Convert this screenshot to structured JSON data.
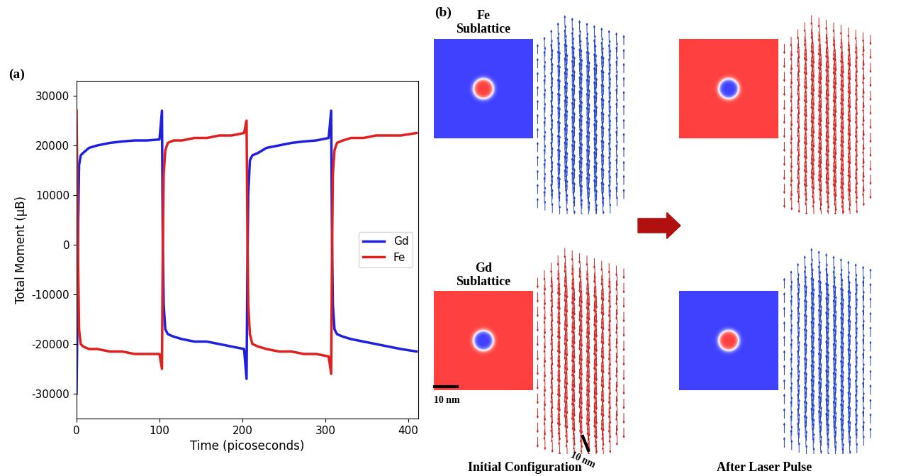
{
  "chart_data": {
    "type": "line",
    "title": "(a)",
    "x_label": "Time (picoseconds)",
    "y_label": "Total Moment (μB)",
    "x": [
      0,
      1,
      2,
      3,
      5,
      8,
      15,
      25,
      40,
      55,
      70,
      85,
      100,
      103,
      104,
      105,
      107,
      110,
      117,
      127,
      142,
      157,
      172,
      187,
      202,
      205,
      206,
      207,
      209,
      212,
      219,
      229,
      244,
      259,
      274,
      289,
      304,
      307,
      308,
      309,
      311,
      314,
      321,
      331,
      346,
      361,
      376,
      391,
      410
    ],
    "series": [
      {
        "name": "Gd",
        "color": "#1f1fe0",
        "values": [
          -30000,
          -15000,
          5000,
          16000,
          18000,
          18500,
          19500,
          20000,
          20500,
          20800,
          21000,
          21000,
          21200,
          27000,
          0,
          -12000,
          -17000,
          -18000,
          -18500,
          -19000,
          -19500,
          -19500,
          -20000,
          -20500,
          -21000,
          -27000,
          -5000,
          10000,
          17000,
          18000,
          18500,
          19500,
          20000,
          20500,
          20800,
          21000,
          21500,
          27000,
          2000,
          -12000,
          -17000,
          -18000,
          -18500,
          -19000,
          -19500,
          -20000,
          -20500,
          -21000,
          -21500
        ]
      },
      {
        "name": "Fe",
        "color": "#e01f1f",
        "values": [
          27000,
          10000,
          -5000,
          -17000,
          -20000,
          -20500,
          -21000,
          -21000,
          -21500,
          -21500,
          -22000,
          -22000,
          -22000,
          -25000,
          0,
          14000,
          19000,
          20500,
          21000,
          21000,
          21500,
          21500,
          22000,
          22000,
          22500,
          25000,
          3000,
          -12000,
          -18000,
          -20000,
          -20500,
          -21000,
          -21500,
          -21500,
          -22000,
          -22000,
          -22500,
          -26000,
          -3000,
          14000,
          19000,
          20500,
          21000,
          21500,
          21500,
          22000,
          22000,
          22000,
          22500
        ]
      }
    ],
    "xlim": [
      0,
      412
    ],
    "xticks": [
      0,
      100,
      200,
      300,
      400
    ],
    "ylim": [
      -35000,
      33000
    ],
    "yticks": [
      -30000,
      -20000,
      -10000,
      0,
      10000,
      20000,
      30000
    ],
    "legend": "center right",
    "grid": false
  },
  "diagram": {
    "label": "(b)",
    "rows": [
      "Fe Sublattice",
      "Gd Sublattice"
    ],
    "columns": [
      "Initial Configuration",
      "After Laser Pulse"
    ],
    "scale_bars": [
      "10 nm",
      "10 nm"
    ]
  }
}
